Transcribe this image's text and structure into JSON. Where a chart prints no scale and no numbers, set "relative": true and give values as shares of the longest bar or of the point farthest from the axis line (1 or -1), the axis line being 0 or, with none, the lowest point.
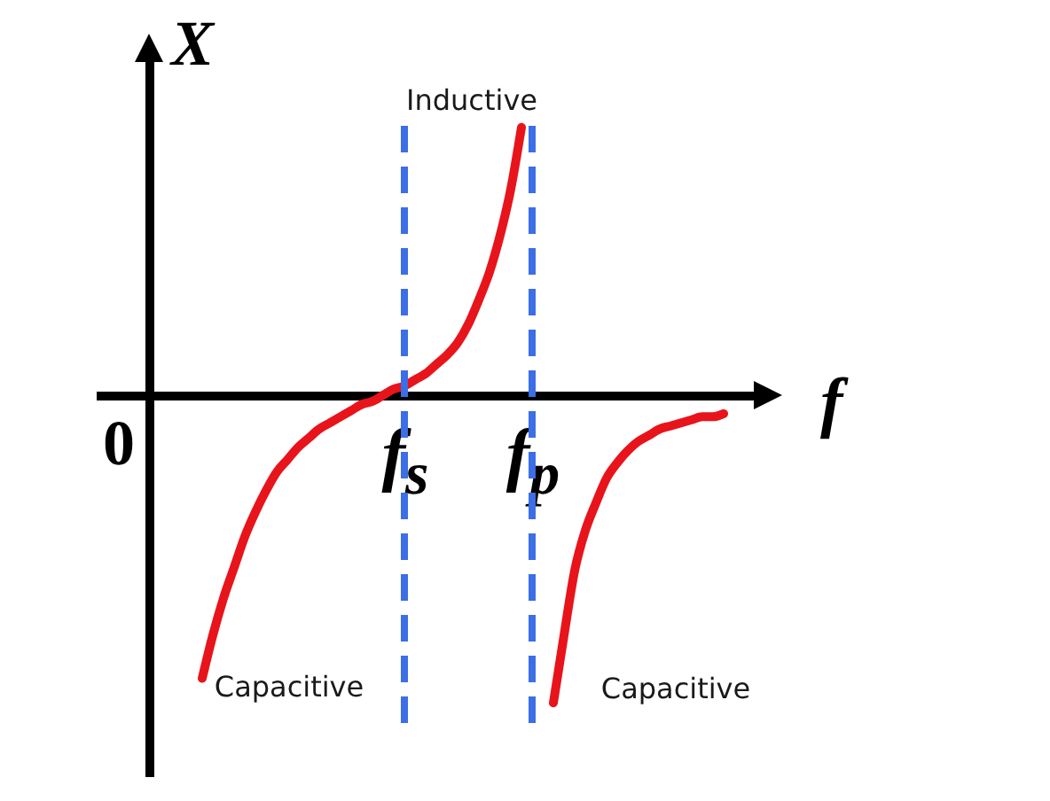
{
  "chart_data": {
    "type": "line",
    "relative": true,
    "xlabel": "f",
    "ylabel": "X",
    "categories": [
      null,
      null,
      null,
      null,
      null,
      null,
      null,
      null,
      null,
      null,
      null,
      null,
      null,
      null,
      null,
      null,
      null,
      null,
      null,
      "f$_{s}$",
      null,
      null,
      null,
      null,
      null,
      null,
      null,
      null,
      null,
      null,
      null,
      "f$_{p}$",
      null,
      null,
      null,
      null,
      null,
      null,
      null,
      null,
      null,
      null,
      null,
      null,
      null,
      null,
      null,
      null,
      null,
      null
    ],
    "series": [
      {
        "color": "#e8141b",
        "values": [
          -0.92,
          -0.78,
          -0.66,
          -0.56,
          -0.46,
          -0.38,
          -0.31,
          -0.25,
          -0.21,
          -0.17,
          -0.14,
          -0.11,
          -0.09,
          -0.07,
          -0.05,
          -0.03,
          -0.02,
          0.0,
          0.02,
          0.03,
          0.05,
          0.07,
          0.1,
          0.13,
          0.17,
          0.23,
          0.31,
          0.4,
          0.52,
          0.67,
          0.87,
          null,
          null,
          null,
          null,
          null,
          null,
          null,
          null,
          null,
          null,
          null,
          null,
          null,
          null,
          null,
          null,
          null,
          null,
          null
        ]
      },
      {
        "color": "#e8141b",
        "values": [
          null,
          null,
          null,
          null,
          null,
          null,
          null,
          null,
          null,
          null,
          null,
          null,
          null,
          null,
          null,
          null,
          null,
          null,
          null,
          null,
          null,
          null,
          null,
          null,
          null,
          null,
          null,
          null,
          null,
          null,
          null,
          null,
          null,
          -1,
          -0.78,
          -0.57,
          -0.44,
          -0.35,
          -0.27,
          -0.22,
          -0.18,
          -0.15,
          -0.13,
          -0.11,
          -0.1,
          -0.09,
          -0.08,
          -0.07,
          -0.07,
          -0.06
        ]
      }
    ],
    "ref_lines": [
      {
        "axis": "x",
        "value": "f$_{s}$",
        "color": "#3c6ee6",
        "line_style": "dashed"
      },
      {
        "axis": "x",
        "value": "f$_{p}$",
        "color": "#3c6ee6",
        "line_style": "dashed"
      }
    ],
    "annotations": [
      "0",
      "Inductive",
      "Capacitive",
      "Capacitive"
    ]
  }
}
